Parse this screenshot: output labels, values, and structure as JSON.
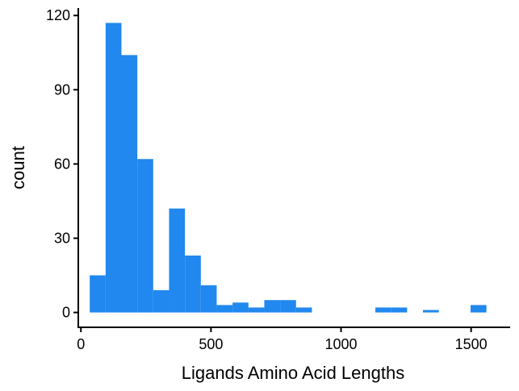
{
  "chart_data": {
    "type": "bar",
    "subtype": "histogram",
    "title": "",
    "xlabel": "Ligands Amino Acid Lengths",
    "ylabel": "count",
    "xlim": [
      -10,
      1650
    ],
    "ylim": [
      -6,
      123
    ],
    "x_ticks": [
      0,
      500,
      1000,
      1500
    ],
    "y_ticks": [
      0,
      30,
      60,
      90,
      120
    ],
    "legend": "none",
    "grid": false,
    "bar_color": "#2088EE",
    "bins": [
      {
        "x0": 34,
        "x1": 95,
        "count": 15
      },
      {
        "x0": 95,
        "x1": 156,
        "count": 117
      },
      {
        "x0": 156,
        "x1": 217,
        "count": 104
      },
      {
        "x0": 217,
        "x1": 278,
        "count": 62
      },
      {
        "x0": 278,
        "x1": 339,
        "count": 9
      },
      {
        "x0": 339,
        "x1": 400,
        "count": 42
      },
      {
        "x0": 400,
        "x1": 461,
        "count": 23
      },
      {
        "x0": 461,
        "x1": 522,
        "count": 11
      },
      {
        "x0": 522,
        "x1": 583,
        "count": 3
      },
      {
        "x0": 583,
        "x1": 644,
        "count": 4
      },
      {
        "x0": 644,
        "x1": 705,
        "count": 2
      },
      {
        "x0": 705,
        "x1": 766,
        "count": 5
      },
      {
        "x0": 766,
        "x1": 827,
        "count": 5
      },
      {
        "x0": 827,
        "x1": 888,
        "count": 2
      },
      {
        "x0": 1132,
        "x1": 1193,
        "count": 2
      },
      {
        "x0": 1193,
        "x1": 1254,
        "count": 2
      },
      {
        "x0": 1315,
        "x1": 1376,
        "count": 1
      },
      {
        "x0": 1498,
        "x1": 1559,
        "count": 3
      }
    ]
  }
}
